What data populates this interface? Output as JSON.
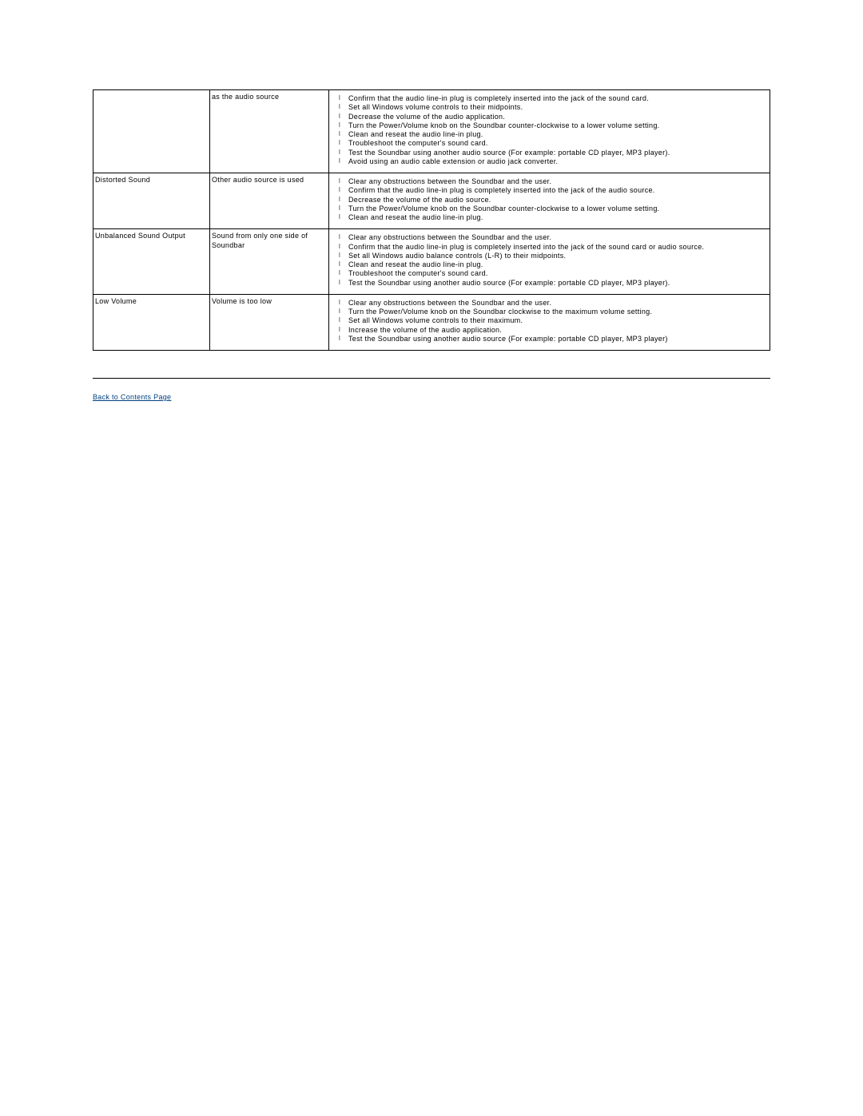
{
  "table": {
    "columns": {
      "col1_width": 146,
      "col2_width": 149
    },
    "border_color": "#000000",
    "font_size": 9,
    "rows": [
      {
        "problem": "",
        "symptom": "as the audio source",
        "steps": [
          "Confirm that the audio line-in plug is completely inserted into the jack of the sound card.",
          "Set all Windows volume controls to their midpoints.",
          "Decrease the volume of the audio application.",
          "Turn the Power/Volume knob on the Soundbar counter-clockwise to a lower volume setting.",
          "Clean and reseat the audio line-in plug.",
          "Troubleshoot the computer's sound card.",
          "Test the Soundbar using another audio source (For example: portable CD player, MP3 player).",
          "Avoid using an audio cable extension or audio jack converter."
        ]
      },
      {
        "problem": "Distorted Sound",
        "symptom": "Other audio source is used",
        "steps": [
          "Clear any obstructions between the Soundbar and the user.",
          "Confirm that the audio line-in plug is completely inserted into the jack of the audio source.",
          "Decrease the volume of the audio source.",
          "Turn the Power/Volume knob on the Soundbar counter-clockwise to a lower volume setting.",
          "Clean and reseat the audio line-in plug."
        ]
      },
      {
        "problem": "Unbalanced Sound Output",
        "symptom": "Sound from only one side of Soundbar",
        "steps": [
          "Clear any obstructions between the Soundbar and the user.",
          "Confirm that the audio line-in plug is completely inserted into the jack of the sound card or audio source.",
          "Set all Windows audio balance controls (L-R) to their midpoints.",
          "Clean and reseat the audio line-in plug.",
          "Troubleshoot the computer's sound card.",
          "Test the Soundbar using another audio source (For example: portable CD player, MP3 player)."
        ]
      },
      {
        "problem": "Low Volume",
        "symptom": "Volume is too low",
        "steps": [
          "Clear any obstructions between the Soundbar and the user.",
          "Turn the Power/Volume knob on the Soundbar clockwise to the maximum volume setting.",
          "Set all Windows volume controls to their maximum.",
          "Increase the volume of the audio application.",
          "Test the Soundbar using another audio source (For example: portable CD player, MP3 player)"
        ]
      }
    ]
  },
  "link": {
    "back_label": "Back to Contents Page",
    "color": "#004080"
  }
}
